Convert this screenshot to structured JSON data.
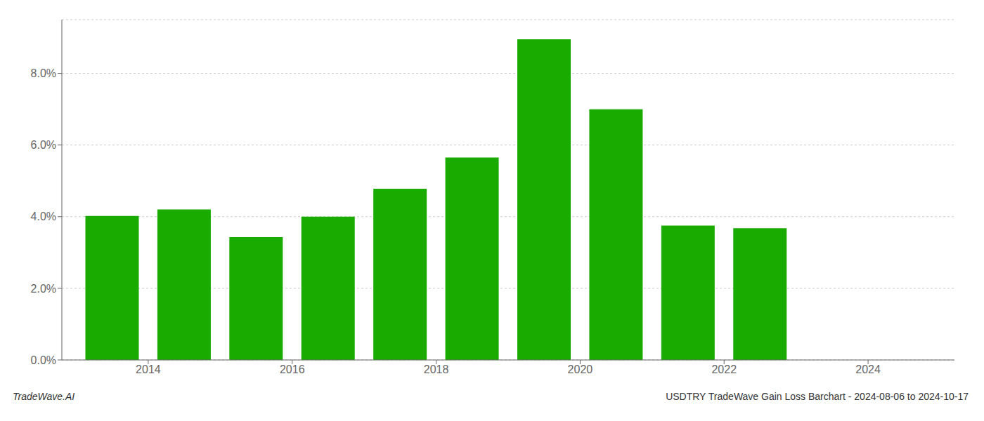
{
  "chart_data": {
    "type": "bar",
    "x": [
      2013,
      2014,
      2015,
      2016,
      2017,
      2018,
      2019,
      2020,
      2021,
      2022
    ],
    "values": [
      0.0402,
      0.042,
      0.0343,
      0.04,
      0.0478,
      0.0565,
      0.0895,
      0.07,
      0.0375,
      0.0368
    ],
    "color": "#1aab00",
    "xlim": [
      2012.3,
      2024.7
    ],
    "xticks": [
      {
        "value": 2013.5,
        "label": "2014"
      },
      {
        "value": 2015.5,
        "label": "2016"
      },
      {
        "value": 2017.5,
        "label": "2018"
      },
      {
        "value": 2019.5,
        "label": "2020"
      },
      {
        "value": 2021.5,
        "label": "2022"
      },
      {
        "value": 2023.5,
        "label": "2024"
      }
    ],
    "ylim": [
      0,
      0.095
    ],
    "yticks": [
      {
        "value": 0,
        "label": "0.0%"
      },
      {
        "value": 0.02,
        "label": "2.0%"
      },
      {
        "value": 0.04,
        "label": "4.0%"
      },
      {
        "value": 0.06,
        "label": "6.0%"
      },
      {
        "value": 0.08,
        "label": "8.0%"
      }
    ],
    "grid": true,
    "annotations": [
      {
        "text": "TradeWave.AI"
      },
      {
        "text": "USDTRY TradeWave Gain Loss Barchart - 2024-08-06 to 2024-10-17"
      }
    ]
  }
}
